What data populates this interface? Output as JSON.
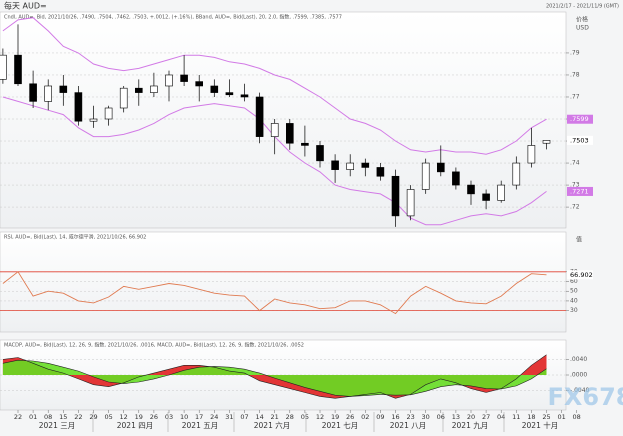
{
  "header": {
    "title": "每天 AUD=",
    "date_range": "2021/2/17 - 2021/11/9 (GMT)",
    "watermark": "FX678"
  },
  "x_axis": {
    "dates": [
      "22",
      "01",
      "08",
      "15",
      "22",
      "29",
      "05",
      "12",
      "19",
      "26",
      "03",
      "10",
      "17",
      "24",
      "31",
      "07",
      "14",
      "21",
      "28",
      "05",
      "12",
      "19",
      "26",
      "02",
      "09",
      "16",
      "23",
      "30",
      "06",
      "13",
      "20",
      "27",
      "04",
      "11",
      "18",
      "25",
      "01",
      "08"
    ],
    "months": [
      "2021 三月",
      "2021 四月",
      "2021 五月",
      "2021 六月",
      "2021 七月",
      "2021 八月",
      "2021 九月",
      "2021 十月"
    ]
  },
  "chart_data": [
    {
      "type": "candlestick",
      "legend": "Cndl, AUD=, Bid, 2021/10/26, .7490, .7504, .7462, .7503, +.0012, (+.16%), BBand, AUD=, Bid(Last), 20, 2.0, 指数, .7599, .7385, .7577",
      "y_label": "价格",
      "y_unit": "USD",
      "open": [
        0.778,
        0.789,
        0.776,
        0.768,
        0.775,
        0.772,
        0.759,
        0.76,
        0.765,
        0.774,
        0.772,
        0.775,
        0.78,
        0.777,
        0.775,
        0.772,
        0.771,
        0.77,
        0.752,
        0.758,
        0.749,
        0.748,
        0.741,
        0.737,
        0.74,
        0.738,
        0.734,
        0.716,
        0.728,
        0.74,
        0.736,
        0.73,
        0.726,
        0.723,
        0.73,
        0.74,
        0.749
      ],
      "high": [
        0.792,
        0.803,
        0.782,
        0.778,
        0.78,
        0.775,
        0.766,
        0.766,
        0.775,
        0.778,
        0.781,
        0.782,
        0.789,
        0.78,
        0.778,
        0.778,
        0.776,
        0.772,
        0.76,
        0.76,
        0.757,
        0.75,
        0.744,
        0.744,
        0.742,
        0.74,
        0.737,
        0.73,
        0.742,
        0.748,
        0.738,
        0.732,
        0.728,
        0.732,
        0.743,
        0.756,
        0.7504
      ],
      "low": [
        0.776,
        0.775,
        0.765,
        0.764,
        0.766,
        0.757,
        0.756,
        0.757,
        0.763,
        0.766,
        0.77,
        0.768,
        0.775,
        0.768,
        0.77,
        0.77,
        0.768,
        0.749,
        0.744,
        0.746,
        0.743,
        0.738,
        0.731,
        0.734,
        0.734,
        0.732,
        0.711,
        0.714,
        0.726,
        0.734,
        0.728,
        0.721,
        0.719,
        0.722,
        0.728,
        0.738,
        0.7462
      ],
      "close": [
        0.789,
        0.776,
        0.768,
        0.775,
        0.772,
        0.759,
        0.76,
        0.765,
        0.774,
        0.772,
        0.775,
        0.78,
        0.777,
        0.775,
        0.772,
        0.771,
        0.77,
        0.752,
        0.758,
        0.749,
        0.748,
        0.741,
        0.737,
        0.74,
        0.738,
        0.734,
        0.716,
        0.728,
        0.74,
        0.736,
        0.73,
        0.726,
        0.723,
        0.73,
        0.74,
        0.748,
        0.7503
      ],
      "close_labels": [
        null,
        null,
        null,
        null,
        null,
        null,
        null,
        null,
        null,
        null,
        null,
        null,
        null,
        null,
        null,
        null,
        null,
        null,
        null,
        null,
        null,
        null,
        null,
        null,
        null,
        null,
        null,
        null,
        null,
        null,
        null,
        null,
        null,
        null,
        null,
        null,
        ".7503"
      ],
      "up_color": "#ffffff",
      "down_color": "#000000",
      "series": [
        {
          "color": "#d27ae6",
          "values": [
            0.8,
            0.805,
            0.806,
            0.8,
            0.793,
            0.79,
            0.785,
            0.783,
            0.782,
            0.783,
            0.785,
            0.787,
            0.789,
            0.789,
            0.788,
            0.786,
            0.785,
            0.783,
            0.78,
            0.778,
            0.774,
            0.77,
            0.765,
            0.76,
            0.758,
            0.755,
            0.75,
            0.746,
            0.745,
            0.746,
            0.745,
            0.745,
            0.744,
            0.746,
            0.75,
            0.756,
            0.7599
          ],
          "value_labels": [
            null,
            null,
            null,
            null,
            null,
            null,
            null,
            null,
            null,
            null,
            null,
            null,
            null,
            null,
            null,
            null,
            null,
            null,
            null,
            null,
            null,
            null,
            null,
            null,
            null,
            null,
            null,
            null,
            null,
            null,
            null,
            null,
            null,
            null,
            null,
            null,
            ".7599"
          ]
        },
        {
          "color": "#d27ae6",
          "values": [
            0.77,
            0.768,
            0.766,
            0.764,
            0.762,
            0.756,
            0.752,
            0.752,
            0.753,
            0.755,
            0.758,
            0.762,
            0.765,
            0.766,
            0.767,
            0.766,
            0.765,
            0.76,
            0.752,
            0.745,
            0.74,
            0.736,
            0.73,
            0.728,
            0.727,
            0.726,
            0.722,
            0.715,
            0.712,
            0.712,
            0.714,
            0.716,
            0.717,
            0.716,
            0.718,
            0.722,
            0.7271
          ],
          "value_labels": [
            null,
            null,
            null,
            null,
            null,
            null,
            null,
            null,
            null,
            null,
            null,
            null,
            null,
            null,
            null,
            null,
            null,
            null,
            null,
            null,
            null,
            null,
            null,
            null,
            null,
            null,
            null,
            null,
            null,
            null,
            null,
            null,
            null,
            null,
            null,
            null,
            ".7271"
          ]
        }
      ],
      "ylim": [
        0.7105,
        0.8086
      ],
      "yticks": [
        {
          "value": 0.79,
          "label": ".79"
        },
        {
          "value": 0.78,
          "label": ".78"
        },
        {
          "value": 0.77,
          "label": ".77"
        },
        {
          "value": 0.76,
          "label": ".76"
        },
        {
          "value": 0.75,
          "label": ".75"
        },
        {
          "value": 0.74,
          "label": ".74"
        },
        {
          "value": 0.73,
          "label": ".73"
        },
        {
          "value": 0.72,
          "label": ".72"
        }
      ],
      "grid": true
    },
    {
      "type": "line",
      "legend": "RSI, AUD=, Bid(Last), 14, 威尔德平滑, 2021/10/26, 66.902",
      "y_label": "值",
      "color": "#e07a50",
      "values": [
        58,
        70,
        45,
        50,
        48,
        40,
        38,
        44,
        55,
        52,
        55,
        58,
        56,
        52,
        48,
        46,
        45,
        30,
        42,
        38,
        36,
        32,
        33,
        40,
        40,
        36,
        27,
        45,
        55,
        48,
        40,
        38,
        37,
        45,
        58,
        68,
        66.902
      ],
      "levels": [
        70,
        30
      ],
      "level_color": "#e04030",
      "ylim": [
        8,
        111
      ],
      "yticks": [
        70,
        60,
        50,
        40,
        30
      ],
      "grid": true
    },
    {
      "type": "area",
      "legend": "MACDP, AUD=, Bid(Last), 12, 26, 9, 指数, 2021/10/26, .0016, MACD, AUD=, Bid(Last), 12, 26, 9, 指数, 2021/10/26, .0052",
      "series": [
        {
          "color": "#e02020",
          "values": [
            0.004,
            0.0045,
            0.003,
            0.0015,
            0.0005,
            -0.001,
            -0.0025,
            -0.003,
            -0.002,
            -0.0005,
            0.0005,
            0.0015,
            0.0025,
            0.0025,
            0.002,
            0.001,
            0.0005,
            -0.0015,
            -0.0025,
            -0.0035,
            -0.0045,
            -0.0055,
            -0.006,
            -0.0055,
            -0.005,
            -0.0045,
            -0.006,
            -0.005,
            -0.0025,
            -0.001,
            -0.002,
            -0.0035,
            -0.0045,
            -0.0035,
            -0.001,
            0.0025,
            0.0052
          ]
        },
        {
          "color": "#66dd22",
          "values": [
            0.003,
            0.0038,
            0.0036,
            0.003,
            0.002,
            0.001,
            -0.0005,
            -0.0018,
            -0.0022,
            -0.0018,
            -0.001,
            0.0,
            0.0012,
            0.002,
            0.0022,
            0.002,
            0.0015,
            0.0005,
            -0.0008,
            -0.002,
            -0.0032,
            -0.0042,
            -0.0052,
            -0.0055,
            -0.0053,
            -0.005,
            -0.0052,
            -0.0051,
            -0.0042,
            -0.003,
            -0.0025,
            -0.0028,
            -0.0035,
            -0.0036,
            -0.0028,
            -0.001,
            0.0016
          ]
        }
      ],
      "ylim": [
        -0.009,
        0.009
      ],
      "yticks": [
        {
          "value": 0.004,
          "label": ".0040"
        },
        {
          "value": 0,
          "label": ".0000"
        },
        {
          "value": -0.004,
          "label": "-.0040"
        }
      ],
      "grid": true
    }
  ]
}
